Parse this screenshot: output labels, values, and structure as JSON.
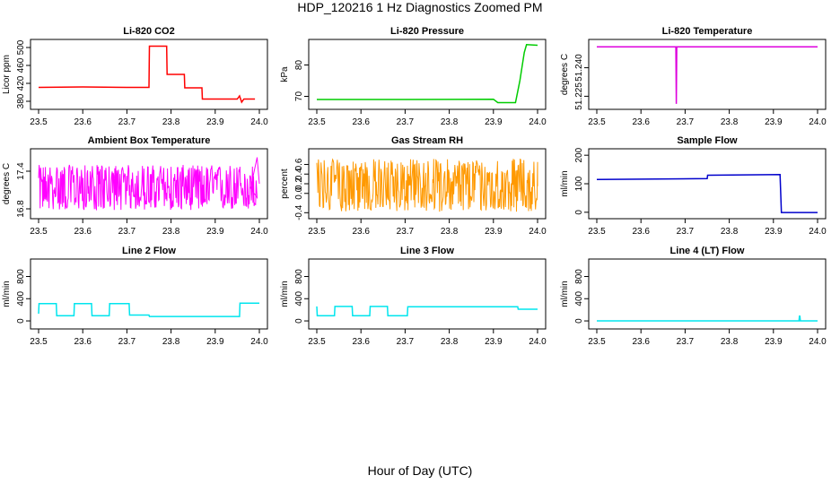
{
  "figure": {
    "title": "HDP_120216  1 Hz Diagnostics Zoomed PM",
    "xlabel": "Hour of Day (UTC)"
  },
  "chart_data": [
    {
      "type": "line",
      "title": "Li-820 CO2",
      "ylabel": "Licor ppm",
      "color": "#ff0000",
      "xlim": [
        23.5,
        24.0
      ],
      "ylim": [
        370,
        510
      ],
      "xticks": [
        "23.5",
        "23.6",
        "23.7",
        "23.8",
        "23.9",
        "24.0"
      ],
      "yticks": [
        "380",
        "420",
        "460",
        "500"
      ],
      "style": "steps",
      "x": [
        23.5,
        23.6,
        23.7,
        23.75,
        23.751,
        23.79,
        23.791,
        23.83,
        23.831,
        23.87,
        23.871,
        23.95,
        23.955,
        23.96,
        23.965,
        23.99
      ],
      "y": [
        411,
        412,
        411,
        411,
        503,
        503,
        440,
        440,
        410,
        410,
        385,
        385,
        392,
        378,
        385,
        385
      ]
    },
    {
      "type": "line",
      "title": "Li-820 Pressure",
      "ylabel": "kPa",
      "color": "#00cc00",
      "xlim": [
        23.5,
        24.0
      ],
      "ylim": [
        67,
        87
      ],
      "xticks": [
        "23.5",
        "23.6",
        "23.7",
        "23.8",
        "23.9",
        "24.0"
      ],
      "yticks": [
        "70",
        "80"
      ],
      "style": "steps",
      "x": [
        23.5,
        23.7,
        23.9,
        23.91,
        23.95,
        23.96,
        23.97,
        23.975,
        24.0
      ],
      "y": [
        69,
        69,
        69.1,
        68,
        68,
        75,
        84,
        86.5,
        86.3
      ]
    },
    {
      "type": "line",
      "title": "Li-820 Temperature",
      "ylabel": "degrees C",
      "color": "#dd00dd",
      "xlim": [
        23.5,
        24.0
      ],
      "ylim": [
        51.22,
        51.253
      ],
      "xticks": [
        "23.5",
        "23.6",
        "23.7",
        "23.8",
        "23.9",
        "24.0"
      ],
      "yticks": [
        "51.225",
        "51.240"
      ],
      "style": "steps",
      "x": [
        23.5,
        23.679,
        23.68,
        23.681,
        24.0
      ],
      "y": [
        51.251,
        51.251,
        51.221,
        51.251,
        51.251
      ]
    },
    {
      "type": "line",
      "title": "Ambient Box Temperature",
      "ylabel": "degrees C",
      "color": "#ff00ff",
      "xlim": [
        23.5,
        24.0
      ],
      "ylim": [
        16.7,
        17.7
      ],
      "xticks": [
        "23.5",
        "23.6",
        "23.7",
        "23.8",
        "23.9",
        "24.0"
      ],
      "yticks": [
        "16.8",
        "17.4"
      ],
      "style": "noise",
      "noise_mean": 17.13,
      "noise_spread": [
        16.78,
        17.5
      ],
      "x": [
        23.5,
        23.98,
        23.995,
        24.0
      ],
      "y": [
        17.13,
        17.13,
        17.62,
        17.2
      ]
    },
    {
      "type": "line",
      "title": "Gas Stream RH",
      "ylabel": "percent",
      "color": "#ff9900",
      "xlim": [
        23.5,
        24.0
      ],
      "ylim": [
        -0.45,
        0.85
      ],
      "xticks": [
        "23.5",
        "23.6",
        "23.7",
        "23.8",
        "23.9",
        "24.0"
      ],
      "yticks": [
        "-0.4",
        "0.0",
        "0.2",
        "0.4",
        "0.6"
      ],
      "style": "noise",
      "noise_mean": 0.15,
      "noise_spread": [
        -0.38,
        0.72
      ],
      "x": [
        23.5,
        24.0
      ],
      "y": [
        0.15,
        0.15
      ]
    },
    {
      "type": "line",
      "title": "Sample Flow",
      "ylabel": "ml/min",
      "color": "#0000cc",
      "xlim": [
        23.5,
        24.0
      ],
      "ylim": [
        -10,
        210
      ],
      "xticks": [
        "23.5",
        "23.6",
        "23.7",
        "23.8",
        "23.9",
        "24.0"
      ],
      "yticks": [
        "0",
        "100",
        "200"
      ],
      "style": "steps",
      "x": [
        23.5,
        23.75,
        23.751,
        23.915,
        23.918,
        24.0
      ],
      "y": [
        115,
        118,
        130,
        132,
        -1,
        -1
      ]
    },
    {
      "type": "line",
      "title": "Line 2 Flow",
      "ylabel": "ml/min",
      "color": "#00e5ee",
      "xlim": [
        23.5,
        24.0
      ],
      "ylim": [
        -80,
        1050
      ],
      "xticks": [
        "23.5",
        "23.6",
        "23.7",
        "23.8",
        "23.9",
        "24.0"
      ],
      "yticks": [
        "0",
        "400",
        "800"
      ],
      "style": "steps",
      "x": [
        23.5,
        23.501,
        23.54,
        23.541,
        23.58,
        23.581,
        23.62,
        23.621,
        23.66,
        23.661,
        23.705,
        23.706,
        23.75,
        23.751,
        23.955,
        23.956,
        24.0
      ],
      "y": [
        130,
        310,
        310,
        95,
        95,
        310,
        310,
        95,
        95,
        310,
        310,
        105,
        105,
        80,
        80,
        320,
        320
      ]
    },
    {
      "type": "line",
      "title": "Line 3 Flow",
      "ylabel": "ml/min",
      "color": "#00e5ee",
      "xlim": [
        23.5,
        24.0
      ],
      "ylim": [
        -80,
        1050
      ],
      "xticks": [
        "23.5",
        "23.6",
        "23.7",
        "23.8",
        "23.9",
        "24.0"
      ],
      "yticks": [
        "0",
        "400",
        "800"
      ],
      "style": "steps",
      "x": [
        23.5,
        23.501,
        23.54,
        23.541,
        23.58,
        23.581,
        23.62,
        23.621,
        23.66,
        23.661,
        23.705,
        23.706,
        23.955,
        23.956,
        24.0
      ],
      "y": [
        260,
        95,
        95,
        260,
        260,
        95,
        95,
        260,
        260,
        95,
        95,
        255,
        255,
        210,
        210
      ]
    },
    {
      "type": "line",
      "title": "Line 4 (LT) Flow",
      "ylabel": "ml/min",
      "color": "#00e5ee",
      "xlim": [
        23.5,
        24.0
      ],
      "ylim": [
        -80,
        1050
      ],
      "xticks": [
        "23.5",
        "23.6",
        "23.7",
        "23.8",
        "23.9",
        "24.0"
      ],
      "yticks": [
        "0",
        "400",
        "800"
      ],
      "style": "steps",
      "x": [
        23.5,
        23.958,
        23.959,
        23.96,
        23.961,
        24.0
      ],
      "y": [
        0,
        0,
        85,
        85,
        0,
        0
      ]
    }
  ]
}
